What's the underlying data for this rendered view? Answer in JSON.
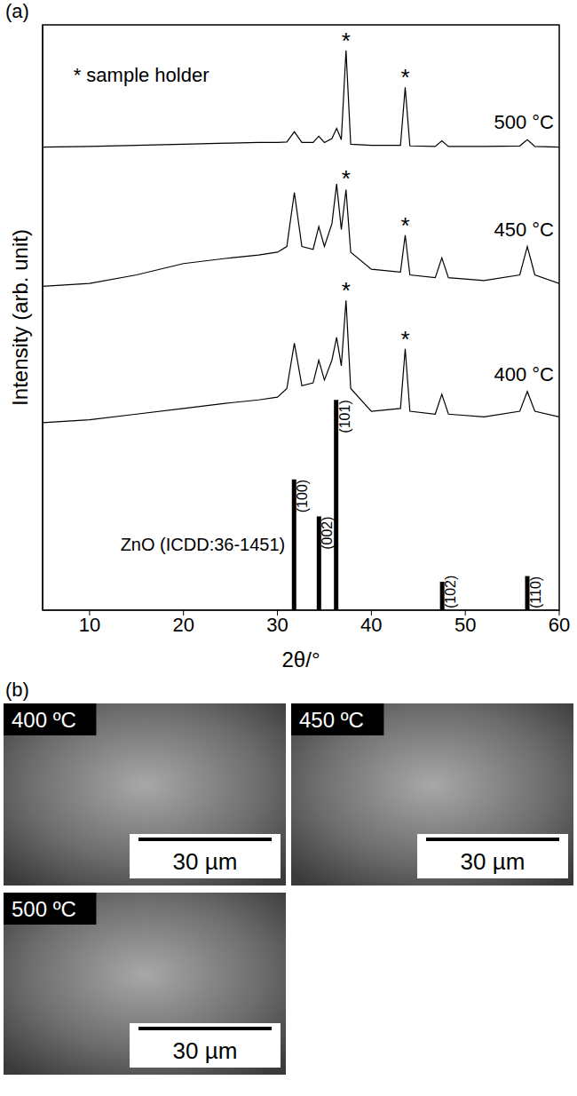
{
  "chart_data": {
    "type": "line",
    "panel_label": "(a)",
    "x_label": "2θ/°",
    "y_label": "Intensity (arb. unit)",
    "xlim": [
      5,
      60
    ],
    "xticks": [
      10,
      20,
      30,
      40,
      50,
      60
    ],
    "ylim": [
      0,
      103
    ],
    "tick_labels": "x",
    "grid": false,
    "x": [
      5,
      10,
      15,
      20,
      25,
      28,
      30,
      31,
      31.8,
      32.6,
      33.8,
      34.4,
      35.0,
      35.8,
      36.3,
      36.8,
      37.3,
      37.8,
      40,
      43.1,
      43.6,
      44.1,
      46.8,
      47.5,
      48.2,
      52,
      55.8,
      56.6,
      57.4,
      60
    ],
    "series": [
      {
        "name": "400 °C",
        "color": "#000000",
        "values": [
          33,
          33.5,
          34.5,
          35.5,
          36.5,
          37,
          37.5,
          39,
          47,
          39.5,
          40,
          44,
          40.5,
          44,
          48,
          43,
          54.5,
          39,
          35,
          35.5,
          46,
          35,
          34.5,
          38,
          34.5,
          34,
          35,
          38.5,
          35,
          34
        ]
      },
      {
        "name": "450 °C",
        "color": "#000000",
        "values": [
          57,
          57.5,
          59,
          61,
          62,
          62.5,
          63,
          64,
          73.5,
          64,
          63.5,
          67.5,
          64,
          68,
          75,
          67,
          74,
          63,
          60,
          59.5,
          66,
          59,
          58.5,
          62,
          58.5,
          58,
          59,
          64,
          59,
          57.5
        ]
      },
      {
        "name": "500 °C",
        "color": "#000000",
        "values": [
          81.5,
          81.6,
          81.8,
          82,
          82.2,
          82.3,
          82.3,
          82.4,
          84.2,
          82.3,
          82.3,
          83.4,
          82.3,
          83,
          84.8,
          82.8,
          98.5,
          82,
          81.8,
          81.8,
          92,
          81.7,
          81.6,
          82.6,
          81.6,
          81.6,
          81.7,
          82.8,
          81.6,
          81.5
        ]
      }
    ],
    "reference": {
      "name": "ZnO (ICDD:36-1451)",
      "color": "#000000",
      "x": [
        31.77,
        34.42,
        36.25,
        47.54,
        56.6
      ],
      "values": [
        23,
        16.5,
        37,
        5,
        6
      ],
      "labels": [
        "(100)",
        "(002)",
        "(101)",
        "(102)",
        "(110)"
      ]
    },
    "annotations": [
      {
        "text": "* sample holder",
        "x": 15.5,
        "y": 93
      },
      {
        "text": "*",
        "x": 37.3,
        "y": 98.8
      },
      {
        "text": "*",
        "x": 43.6,
        "y": 92.3
      },
      {
        "text": "*",
        "x": 37.3,
        "y": 74.6
      },
      {
        "text": "*",
        "x": 43.6,
        "y": 66.3
      },
      {
        "text": "*",
        "x": 37.3,
        "y": 54.8
      },
      {
        "text": "*",
        "x": 43.6,
        "y": 46.3
      }
    ]
  },
  "panel_b": {
    "label": "(b)",
    "images": [
      {
        "label": "400 ºC",
        "scale_bar": "30 µm"
      },
      {
        "label": "450 ºC",
        "scale_bar": "30 µm"
      },
      {
        "label": "500 ºC",
        "scale_bar": "30 µm"
      }
    ]
  }
}
